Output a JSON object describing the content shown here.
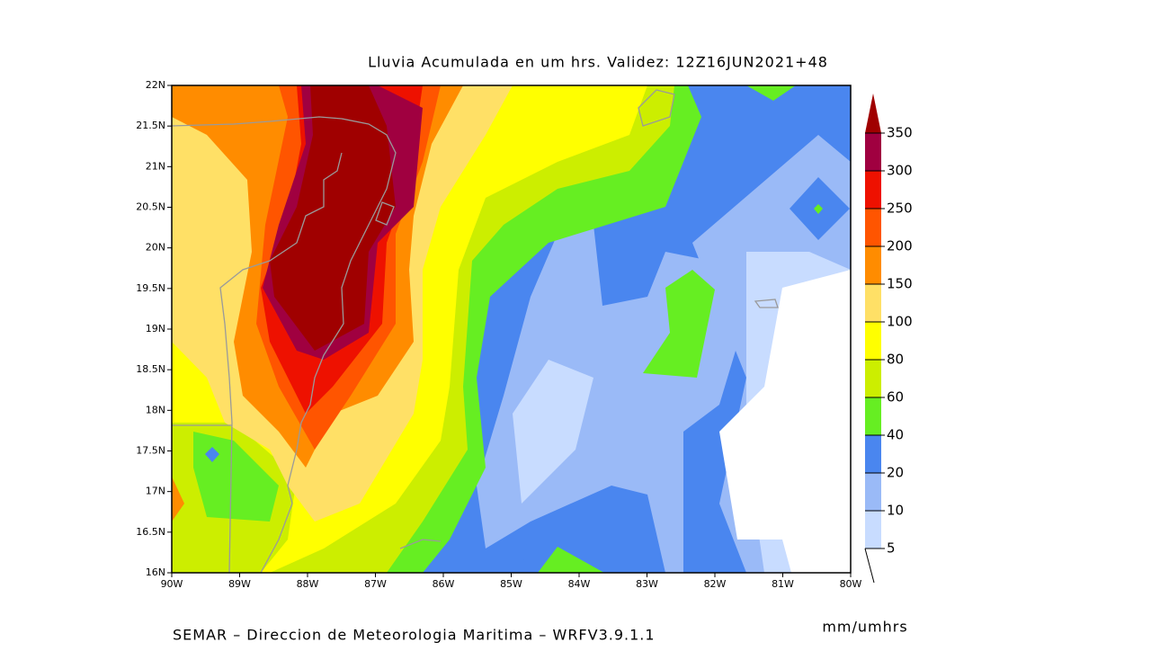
{
  "map": {
    "title": "Lluvia Acumulada en um hrs.  Validez: 12Z16JUN2021+48",
    "x_labels": [
      "90W",
      "89W",
      "88W",
      "87W",
      "86W",
      "85W",
      "84W",
      "83W",
      "82W",
      "81W",
      "80W"
    ],
    "y_labels": [
      "22N",
      "21.5N",
      "21N",
      "20.5N",
      "20N",
      "19.5N",
      "19N",
      "18.5N",
      "18N",
      "17.5N",
      "17N",
      "16.5N",
      "16N"
    ],
    "colorbar": {
      "levels": [
        5,
        10,
        20,
        40,
        60,
        80,
        100,
        150,
        200,
        250,
        300,
        350
      ],
      "colors": [
        "#c8dcff",
        "#9abaf7",
        "#4a86ef",
        "#66ee22",
        "#ccee00",
        "#ffff00",
        "#ffe066",
        "#ff8c00",
        "#ff5500",
        "#ee1100",
        "#a00040"
      ],
      "over_color": "#a00000"
    },
    "footer": "SEMAR – Direccion de Meteorologia Maritima – WRFV3.9.1.1",
    "units": "mm/umhrs"
  }
}
